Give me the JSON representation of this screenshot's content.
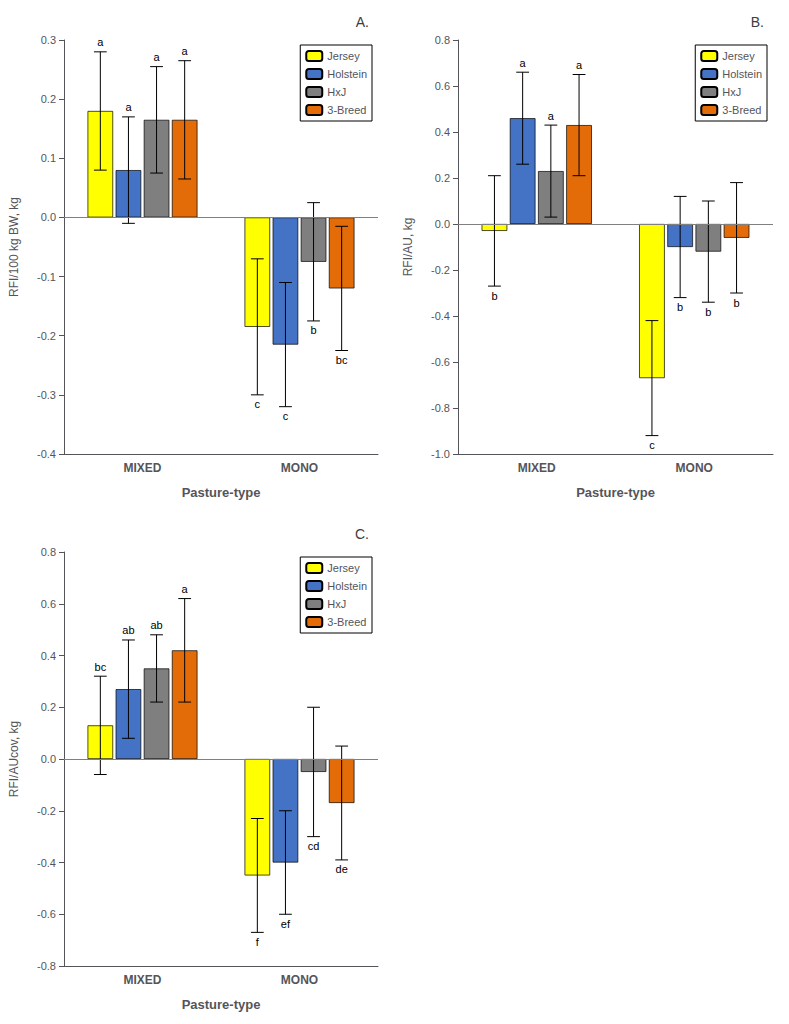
{
  "chart_data": [
    {
      "type": "bar",
      "title": "A.",
      "xlabel": "Pasture-type",
      "ylabel": "RFI/100 kg BW, kg",
      "categories": [
        "MIXED",
        "MONO"
      ],
      "series": [
        {
          "name": "Jersey",
          "color": "#FFFF00",
          "values": [
            0.18,
            -0.185
          ],
          "errors": [
            0.1,
            0.115
          ],
          "annotations": [
            "a",
            "c"
          ]
        },
        {
          "name": "Holstein",
          "color": "#4472C4",
          "values": [
            0.08,
            -0.215
          ],
          "errors": [
            0.09,
            0.105
          ],
          "annotations": [
            "a",
            "c"
          ]
        },
        {
          "name": "HxJ",
          "color": "#7F7F7F",
          "values": [
            0.165,
            -0.075
          ],
          "errors": [
            0.09,
            0.1
          ],
          "annotations": [
            "a",
            "b"
          ]
        },
        {
          "name": "3-Breed",
          "color": "#E36C09",
          "values": [
            0.165,
            -0.12
          ],
          "errors": [
            0.1,
            0.105
          ],
          "annotations": [
            "a",
            "bc"
          ]
        }
      ],
      "ylim": [
        -0.4,
        0.3
      ],
      "yticks": [
        -0.4,
        -0.3,
        -0.2,
        -0.1,
        {
          "value": 0,
          "label": "0.0"
        },
        0.1,
        0.2,
        0.3
      ],
      "grid": false,
      "legend": "upper right"
    },
    {
      "type": "bar",
      "title": "B.",
      "xlabel": "Pasture-type",
      "ylabel": "RFI/AU, kg",
      "categories": [
        "MIXED",
        "MONO"
      ],
      "series": [
        {
          "name": "Jersey",
          "color": "#FFFF00",
          "values": [
            -0.03,
            -0.67
          ],
          "errors": [
            0.24,
            0.25
          ],
          "annotations": [
            "b",
            "c"
          ]
        },
        {
          "name": "Holstein",
          "color": "#4472C4",
          "values": [
            0.46,
            -0.1
          ],
          "errors": [
            0.2,
            0.22
          ],
          "annotations": [
            "a",
            "b"
          ]
        },
        {
          "name": "HxJ",
          "color": "#7F7F7F",
          "values": [
            0.23,
            -0.12
          ],
          "errors": [
            0.2,
            0.22
          ],
          "annotations": [
            "a",
            "b"
          ]
        },
        {
          "name": "3-Breed",
          "color": "#E36C09",
          "values": [
            0.43,
            -0.06
          ],
          "errors": [
            0.22,
            0.24
          ],
          "annotations": [
            "a",
            "b"
          ]
        }
      ],
      "ylim": [
        -1.0,
        0.8
      ],
      "yticks": [
        {
          "value": -1.0,
          "label": "-1.0"
        },
        -0.8,
        -0.6,
        -0.4,
        -0.2,
        {
          "value": 0,
          "label": "0.0"
        },
        0.2,
        0.4,
        0.6,
        0.8
      ],
      "grid": false,
      "legend": "upper right"
    },
    {
      "type": "bar",
      "title": "C.",
      "xlabel": "Pasture-type",
      "ylabel": "RFI/AUcov, kg",
      "categories": [
        "MIXED",
        "MONO"
      ],
      "series": [
        {
          "name": "Jersey",
          "color": "#FFFF00",
          "values": [
            0.13,
            -0.45
          ],
          "errors": [
            0.19,
            0.22
          ],
          "annotations": [
            "bc",
            "f"
          ]
        },
        {
          "name": "Holstein",
          "color": "#4472C4",
          "values": [
            0.27,
            -0.4
          ],
          "errors": [
            0.19,
            0.2
          ],
          "annotations": [
            "ab",
            "ef"
          ]
        },
        {
          "name": "HxJ",
          "color": "#7F7F7F",
          "values": [
            0.35,
            -0.05
          ],
          "errors": [
            0.13,
            0.25
          ],
          "annotations": [
            "ab",
            "cd"
          ]
        },
        {
          "name": "3-Breed",
          "color": "#E36C09",
          "values": [
            0.42,
            -0.17
          ],
          "errors": [
            0.2,
            0.22
          ],
          "annotations": [
            "a",
            "de"
          ]
        }
      ],
      "ylim": [
        -0.8,
        0.8
      ],
      "yticks": [
        -0.8,
        -0.6,
        -0.4,
        -0.2,
        {
          "value": 0,
          "label": "0.0"
        },
        0.2,
        0.4,
        0.6,
        0.8
      ],
      "grid": false,
      "legend": "upper right"
    }
  ]
}
